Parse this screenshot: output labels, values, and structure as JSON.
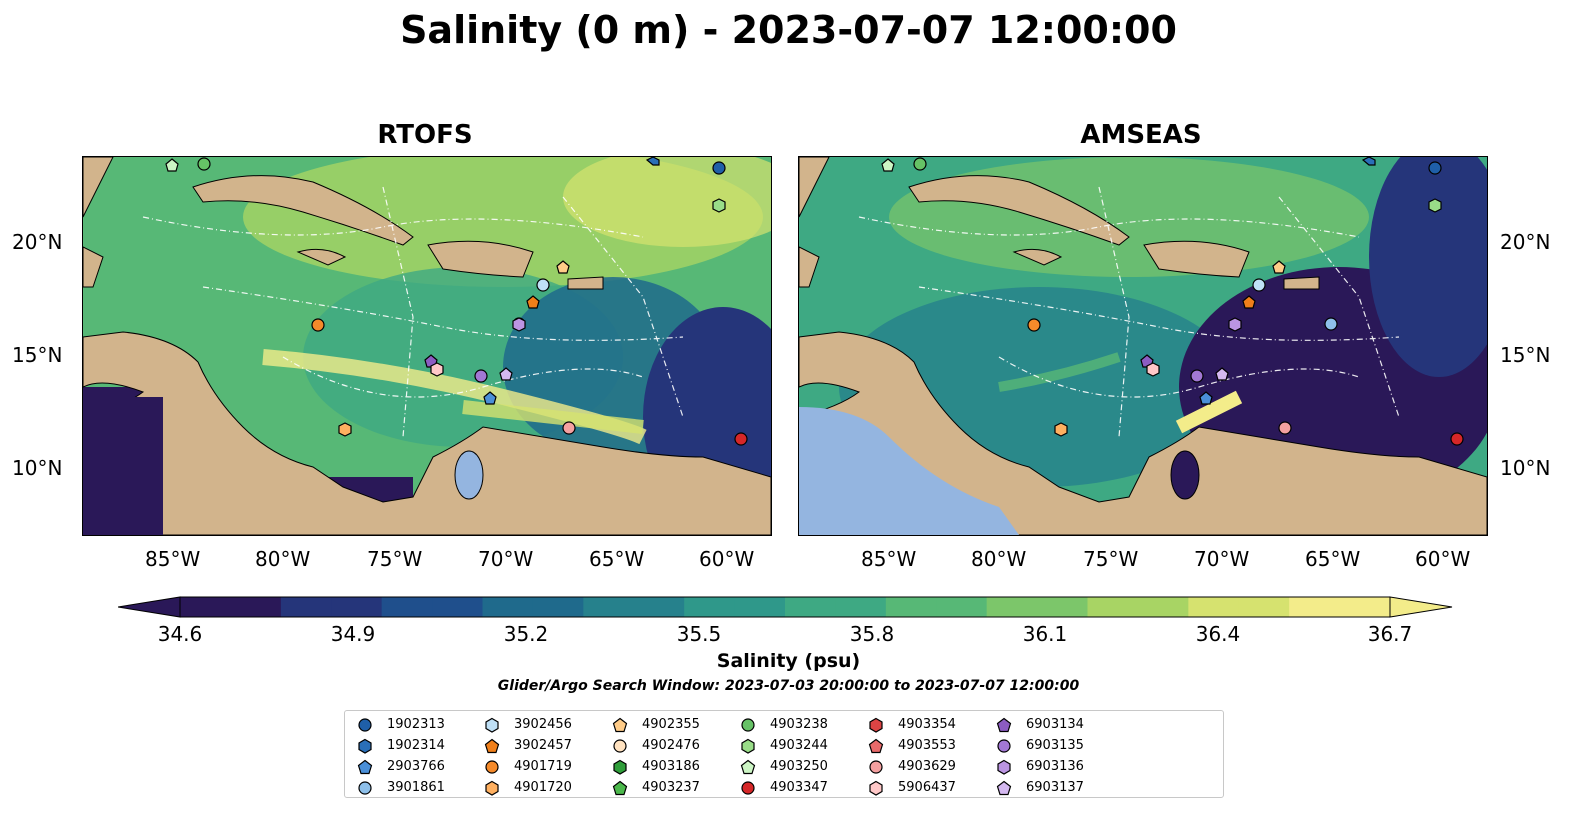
{
  "figure": {
    "title": "Salinity (0 m) - 2023-07-07 12:00:00",
    "panels": [
      {
        "name": "RTOFS"
      },
      {
        "name": "AMSEAS"
      }
    ],
    "lon_ticks": [
      "85°W",
      "80°W",
      "75°W",
      "70°W",
      "65°W",
      "60°W"
    ],
    "lat_ticks": [
      "20°N",
      "15°N",
      "10°N"
    ],
    "colorbar": {
      "label": "Salinity (psu)",
      "ticks": [
        "34.6",
        "34.9",
        "35.2",
        "35.5",
        "35.8",
        "36.1",
        "36.4",
        "36.7"
      ],
      "range": [
        34.6,
        36.7
      ],
      "colors": [
        "#2a1858",
        "#25357a",
        "#1f4f8c",
        "#1f6a8c",
        "#26818c",
        "#2f988a",
        "#3ea983",
        "#57b876",
        "#7cc66a",
        "#a8d464",
        "#d6e26f",
        "#f3ec8a"
      ]
    },
    "search_window": "Glider/Argo Search Window: 2023-07-03 20:00:00 to 2023-07-07 12:00:00"
  },
  "colors": {
    "land": "#d2b48c",
    "lake": "#94b5e0",
    "frame": "#000000"
  },
  "legend": {
    "items": [
      {
        "label": "1902313",
        "marker": "circle",
        "color": "#1f5fa8"
      },
      {
        "label": "1902314",
        "marker": "hexagon",
        "color": "#2a6fb8"
      },
      {
        "label": "2903766",
        "marker": "pentagon",
        "color": "#4a8fd8"
      },
      {
        "label": "3901861",
        "marker": "circle",
        "color": "#8ec0ea"
      },
      {
        "label": "3902456",
        "marker": "hexagon",
        "color": "#bfe0f6"
      },
      {
        "label": "3902457",
        "marker": "pentagon",
        "color": "#f07f1a"
      },
      {
        "label": "4901719",
        "marker": "circle",
        "color": "#f58a2a"
      },
      {
        "label": "4901720",
        "marker": "hexagon",
        "color": "#ffb060"
      },
      {
        "label": "4902355",
        "marker": "pentagon",
        "color": "#ffcc88"
      },
      {
        "label": "4902476",
        "marker": "circle",
        "color": "#ffe2c0"
      },
      {
        "label": "4903186",
        "marker": "hexagon",
        "color": "#2f9e3a"
      },
      {
        "label": "4903237",
        "marker": "pentagon",
        "color": "#4cb84c"
      },
      {
        "label": "4903238",
        "marker": "circle",
        "color": "#66c266"
      },
      {
        "label": "4903244",
        "marker": "hexagon",
        "color": "#99dd88"
      },
      {
        "label": "4903250",
        "marker": "pentagon",
        "color": "#ccf5c4"
      },
      {
        "label": "4903347",
        "marker": "circle",
        "color": "#d62728"
      },
      {
        "label": "4903354",
        "marker": "hexagon",
        "color": "#dd4444"
      },
      {
        "label": "4903553",
        "marker": "pentagon",
        "color": "#e86a6a"
      },
      {
        "label": "4903629",
        "marker": "circle",
        "color": "#f4a0a0"
      },
      {
        "label": "5906437",
        "marker": "hexagon",
        "color": "#ffc8c8"
      },
      {
        "label": "6903134",
        "marker": "pentagon",
        "color": "#8c5cc2"
      },
      {
        "label": "6903135",
        "marker": "circle",
        "color": "#a278d4"
      },
      {
        "label": "6903136",
        "marker": "hexagon",
        "color": "#bb95e2"
      },
      {
        "label": "6903137",
        "marker": "pentagon",
        "color": "#d4b8f0"
      }
    ]
  }
}
